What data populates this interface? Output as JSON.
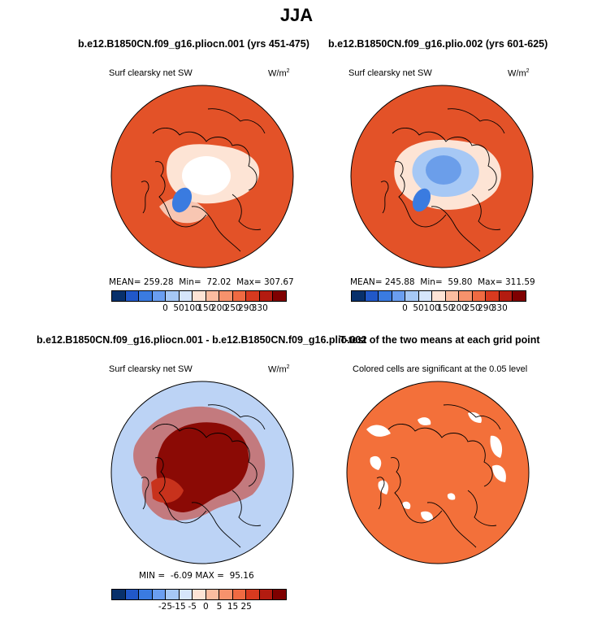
{
  "title": "JJA",
  "panels": {
    "p1": {
      "case": "b.e12.B1850CN.f09_g16.pliocn.001 (yrs 451-475)",
      "var": "Surf clearsky net SW",
      "units": "W/m",
      "units_sup": "2",
      "stats": "MEAN= 259.28  Min=  72.02  Max= 307.67"
    },
    "p2": {
      "case": "b.e12.B1850CN.f09_g16.plio.002 (yrs 601-625)",
      "var": "Surf clearsky net SW",
      "units": "W/m",
      "units_sup": "2",
      "stats": "MEAN= 245.88  Min=  59.80  Max= 311.59"
    },
    "p3": {
      "case": "b.e12.B1850CN.f09_g16.pliocn.001 - b.e12.B1850CN.f09_g16.plio.002",
      "var": "Surf clearsky net SW",
      "units": "W/m",
      "units_sup": "2",
      "stats": "MIN =  -6.09 MAX =  95.16"
    },
    "p4": {
      "case": "T-test of the two means at each grid point",
      "var": "Colored cells are significant at the 0.05 level"
    }
  },
  "colorbar_abs": {
    "colors": [
      "#08306b",
      "#2158c9",
      "#3a7be0",
      "#6a9ef0",
      "#a6c8f5",
      "#d6e6fb",
      "#fde4d5",
      "#fbbda0",
      "#f7926c",
      "#f06a42",
      "#d83a1f",
      "#b31b10",
      "#7f0000"
    ],
    "labels": [
      "0",
      "50",
      "100",
      "150",
      "200",
      "250",
      "290",
      "330"
    ]
  },
  "colorbar_diff": {
    "colors": [
      "#08306b",
      "#2158c9",
      "#3a7be0",
      "#6a9ef0",
      "#a6c8f5",
      "#d6e6fb",
      "#fde4d5",
      "#fbbda0",
      "#f7926c",
      "#f06a42",
      "#d83a1f",
      "#b31b10",
      "#7f0000"
    ],
    "labels": [
      "-25",
      "-15",
      "-5",
      "0",
      "5",
      "15",
      "25"
    ]
  },
  "map_colors": {
    "ocean_abs": "#e8572b",
    "ocean_dark": "#d94a22",
    "ice_light": "#fde4d5",
    "ice_blue": "#a6c8f5",
    "green_blue": "#3a7be0",
    "diff_bg": "#bcd3f5",
    "diff_high": "#8b0a05",
    "diff_mid": "#c8321c",
    "sig": "#f3703a"
  }
}
